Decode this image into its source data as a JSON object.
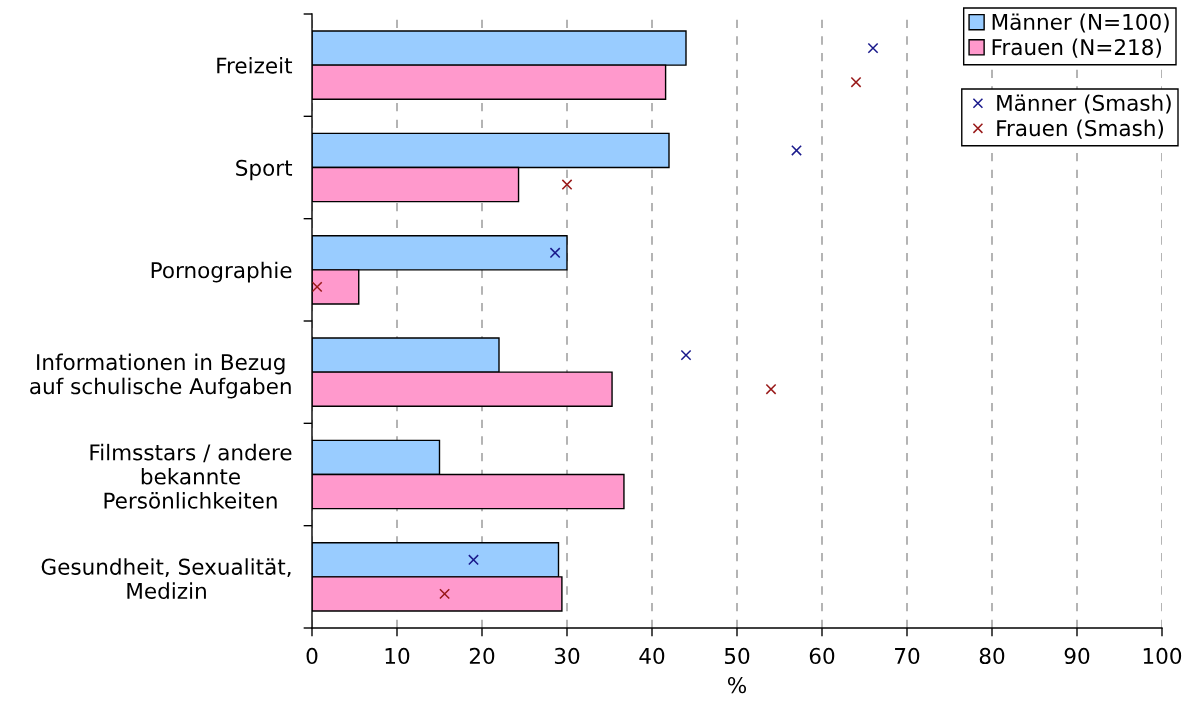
{
  "chart_data": {
    "type": "bar",
    "orientation": "horizontal",
    "categories": [
      "Freizeit",
      "Sport",
      "Pornographie",
      "Informationen in Bezug\nauf schulische Aufgaben",
      "Filmsstars / andere\nbekannte\nPersönlichkeiten",
      "Gesundheit, Sexualität,\nMedizin"
    ],
    "series": [
      {
        "name": "Männer (N=100)",
        "color": "#99ccff",
        "values": [
          44,
          42,
          30,
          22,
          15,
          29
        ]
      },
      {
        "name": "Frauen (N=218)",
        "color": "#ff99cc",
        "values": [
          41.6,
          24.3,
          5.5,
          35.3,
          36.7,
          29.4
        ]
      },
      {
        "type": "scatter",
        "name": "Männer (Smash)",
        "color": "#1a1a8c",
        "values": [
          66,
          57,
          28.6,
          44,
          null,
          19
        ]
      },
      {
        "type": "scatter",
        "name": "Frauen (Smash)",
        "color": "#991a1a",
        "values": [
          64,
          30,
          0.6,
          54,
          null,
          15.6
        ]
      }
    ],
    "xlim": [
      0,
      100
    ],
    "xticks": [
      0,
      10,
      20,
      30,
      40,
      50,
      60,
      70,
      80,
      90,
      100
    ],
    "xlabel": "%",
    "grid": "x",
    "legend": "top right",
    "marker": "cross"
  }
}
